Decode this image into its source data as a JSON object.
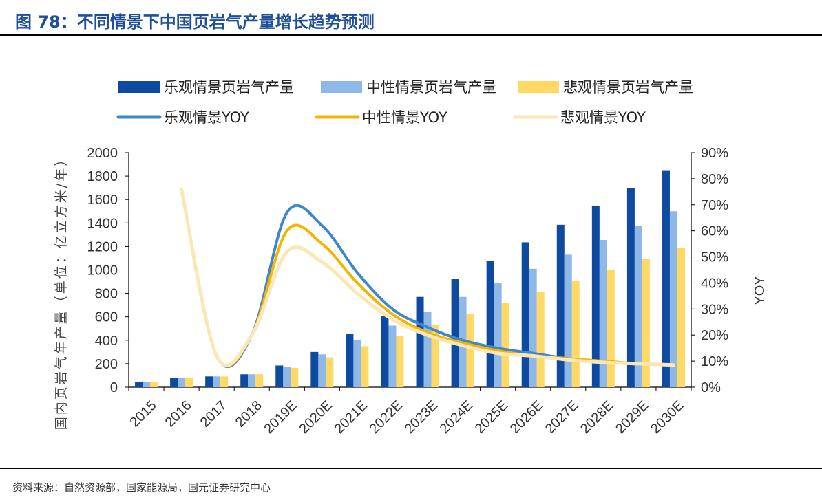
{
  "page": {
    "title": "图 78：不同情景下中国页岩气产量增长趋势预测",
    "source": "资料来源：自然资源部，国家能源局，国元证券研究中心"
  },
  "colors": {
    "optimistic_bar": "#0d4aa0",
    "neutral_bar": "#8db8e8",
    "pessimistic_bar": "#ffd966",
    "optimistic_line": "#3f86d0",
    "neutral_line": "#f5b400",
    "pessimistic_line": "#fbe7b5"
  },
  "chart_data": {
    "type": "bar",
    "title": "",
    "categories": [
      "2015",
      "2016",
      "2017",
      "2018",
      "2019E",
      "2020E",
      "2021E",
      "2022E",
      "2023E",
      "2024E",
      "2025E",
      "2026E",
      "2027E",
      "2028E",
      "2029E",
      "2030E"
    ],
    "ylabel": "国内页岩气年产量（单位：亿立方米/年）",
    "y2label": "YOY",
    "ylim": [
      0,
      2000
    ],
    "y2lim": [
      0,
      90
    ],
    "yticks": [
      "0",
      "200",
      "400",
      "600",
      "800",
      "1000",
      "1200",
      "1400",
      "1600",
      "1800",
      "2000"
    ],
    "y2ticks": [
      "0%",
      "10%",
      "20%",
      "30%",
      "40%",
      "50%",
      "60%",
      "70%",
      "80%",
      "90%"
    ],
    "legend_position": "top",
    "series": [
      {
        "name": "乐观情景页岩气产量",
        "type": "bar",
        "axis": "left",
        "values": [
          45,
          79,
          92,
          110,
          185,
          300,
          455,
          610,
          770,
          925,
          1075,
          1235,
          1385,
          1545,
          1700,
          1850
        ]
      },
      {
        "name": "中性情景页岩气产量",
        "type": "bar",
        "axis": "left",
        "values": [
          45,
          79,
          92,
          110,
          175,
          280,
          405,
          525,
          645,
          770,
          890,
          1010,
          1130,
          1255,
          1375,
          1500
        ]
      },
      {
        "name": "悲观情景页岩气产量",
        "type": "bar",
        "axis": "left",
        "values": [
          45,
          79,
          92,
          110,
          165,
          255,
          350,
          440,
          530,
          625,
          720,
          815,
          905,
          1000,
          1095,
          1185
        ]
      },
      {
        "name": "乐观情景YOY",
        "type": "line",
        "axis": "right",
        "values": [
          null,
          76,
          12,
          20,
          67,
          62,
          44,
          30,
          23,
          18,
          15,
          13,
          11,
          10,
          9,
          8.5
        ]
      },
      {
        "name": "中性情景YOY",
        "type": "line",
        "axis": "right",
        "values": [
          null,
          76,
          12,
          20,
          60,
          55,
          40,
          28,
          21,
          17,
          14,
          12,
          11,
          10,
          9,
          8.5
        ]
      },
      {
        "name": "悲观情景YOY",
        "type": "line",
        "axis": "right",
        "values": [
          null,
          76,
          12,
          20,
          52,
          48,
          36,
          26,
          20,
          16,
          13,
          12,
          10.5,
          9.5,
          9,
          8.5
        ]
      }
    ]
  }
}
